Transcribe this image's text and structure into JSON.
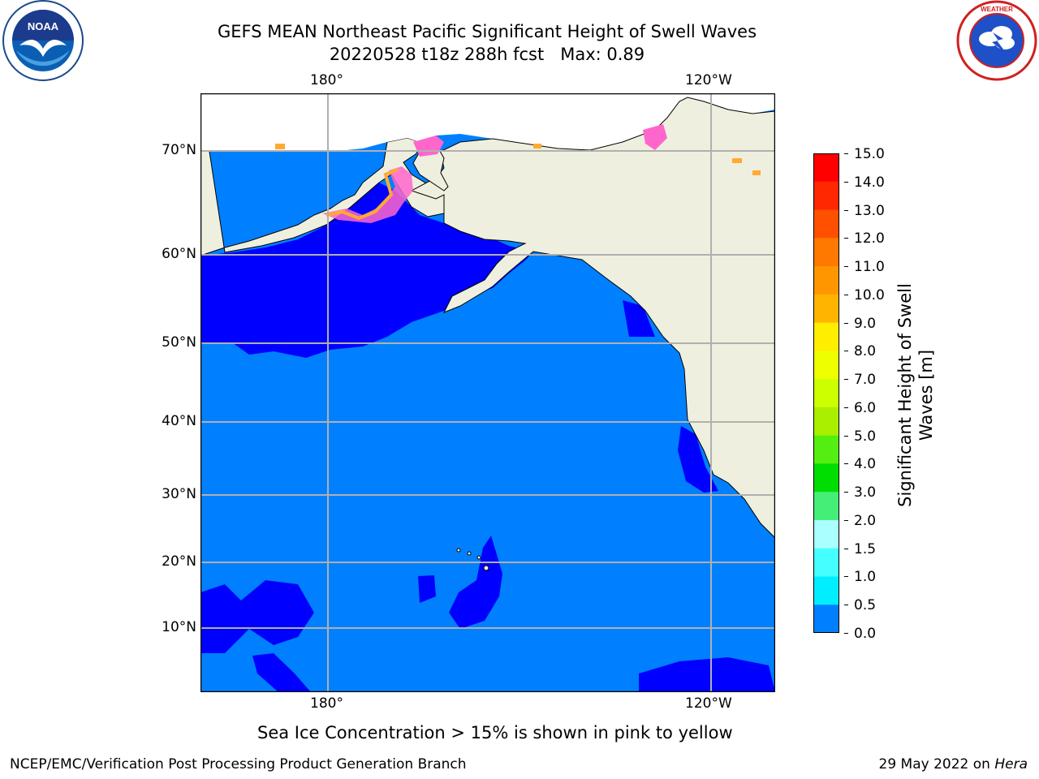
{
  "title": {
    "line1": "GEFS MEAN Northeast Pacific Significant Height of Swell Waves",
    "line2": "20220528 t18z 288h fcst   Max: 0.89"
  },
  "logos": {
    "left": {
      "icon": "noaa-logo-icon",
      "text": "NOAA",
      "ring_text": "NATIONAL OCEANIC AND ATMOSPHERIC ADMINISTRATION · U.S. DEPARTMENT OF COMMERCE"
    },
    "right": {
      "icon": "nws-logo-icon",
      "ring_text": "NATIONAL WEATHER SERVICE"
    }
  },
  "map": {
    "lon_labels": [
      "180°",
      "120°W"
    ],
    "lat_labels": [
      "70°N",
      "60°N",
      "50°N",
      "40°N",
      "30°N",
      "20°N",
      "10°N"
    ],
    "colors": {
      "land": "#efefdf",
      "ocean_light": "#0080ff",
      "ocean_dark": "#0000ff",
      "grid": "#b0b0b0",
      "ice_pink": "#ff66cc",
      "ice_orange": "#ffaa33"
    }
  },
  "colorbar": {
    "ticks": [
      "15.0",
      "14.0",
      "13.0",
      "12.0",
      "11.0",
      "10.0",
      "9.0",
      "8.0",
      "7.0",
      "6.0",
      "5.0",
      "4.0",
      "3.0",
      "2.0",
      "1.5",
      "1.0",
      "0.5",
      "0.0"
    ],
    "colors": [
      "#ff0000",
      "#ff2800",
      "#ff5000",
      "#ff7800",
      "#ff9600",
      "#ffb400",
      "#ffee00",
      "#eeff00",
      "#ccff00",
      "#aaee00",
      "#55ee11",
      "#00dd00",
      "#44ee77",
      "#aaffff",
      "#44ffff",
      "#00eeff",
      "#0080ff",
      "#0000ff"
    ],
    "label": "Significant Height of Swell\nWaves [m]"
  },
  "caption": "Sea Ice Concentration > 15% is shown in pink to yellow",
  "footer": {
    "left": "NCEP/EMC/Verification Post Processing Product Generation Branch",
    "right_prefix": "29 May 2022 on ",
    "right_host": "Hera"
  }
}
